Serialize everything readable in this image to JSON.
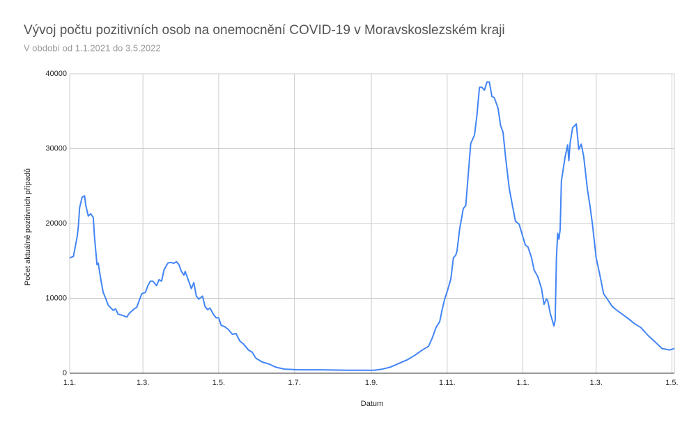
{
  "chart_data": {
    "type": "line",
    "title": "Vývoj počtu pozitivních osob na onemocnění COVID-19 v Moravskoslezském kraji",
    "subtitle": "V období od 1.1.2021 do 3.5.2022",
    "x_label": "Datum",
    "y_label": "Počet aktuálně pozitivních případů",
    "color": "#4285f4",
    "grid": true,
    "x": [
      0,
      3,
      6,
      7,
      8,
      10,
      12,
      13,
      15,
      17,
      19,
      20,
      22,
      23,
      25,
      27,
      29,
      31,
      35,
      37,
      39,
      43,
      46,
      48,
      52,
      54,
      56,
      58,
      61,
      63,
      65,
      67,
      70,
      72,
      74,
      76,
      79,
      81,
      84,
      86,
      88,
      90,
      92,
      93,
      95,
      98,
      100,
      102,
      104,
      107,
      109,
      111,
      113,
      116,
      118,
      120,
      122,
      125,
      128,
      131,
      134,
      137,
      140,
      144,
      147,
      150,
      155,
      161,
      166,
      173,
      185,
      202,
      225,
      245,
      252,
      258,
      265,
      272,
      278,
      284,
      289,
      292,
      295,
      298,
      300,
      302,
      304,
      307,
      309,
      311,
      312,
      314,
      317,
      319,
      321,
      323,
      326,
      328,
      330,
      332,
      334,
      336,
      338,
      340,
      342,
      345,
      347,
      349,
      351,
      354,
      356,
      359,
      362,
      365,
      367,
      369,
      372,
      374,
      377,
      380,
      382,
      384,
      385,
      387,
      390,
      391,
      392,
      393,
      394,
      395,
      396,
      399,
      401,
      402,
      403,
      405,
      408,
      410,
      412,
      414,
      417,
      419,
      421,
      424,
      427,
      430,
      433,
      437,
      440,
      444,
      449,
      455,
      460,
      466,
      472,
      477,
      483,
      487
    ],
    "values": [
      15400,
      15600,
      18200,
      19600,
      22100,
      23500,
      23700,
      22400,
      21000,
      21300,
      20800,
      18200,
      14500,
      14700,
      12600,
      10800,
      10000,
      9100,
      8400,
      8600,
      7900,
      7700,
      7500,
      8000,
      8600,
      8800,
      9700,
      10600,
      10800,
      11700,
      12300,
      12300,
      11700,
      12500,
      12300,
      13800,
      14700,
      14800,
      14700,
      14900,
      14500,
      13600,
      13100,
      13600,
      12700,
      11300,
      12100,
      10300,
      9900,
      10300,
      8900,
      8500,
      8700,
      7800,
      7400,
      7400,
      6400,
      6200,
      5800,
      5200,
      5300,
      4300,
      3900,
      3100,
      2800,
      2000,
      1500,
      1200,
      800,
      550,
      450,
      450,
      400,
      400,
      550,
      800,
      1300,
      1800,
      2400,
      3100,
      3600,
      4700,
      6100,
      6900,
      8500,
      9900,
      10900,
      12600,
      15400,
      15800,
      16400,
      19200,
      22000,
      22400,
      26600,
      30700,
      31800,
      34500,
      38200,
      38200,
      37800,
      38900,
      38900,
      37000,
      36800,
      35400,
      33100,
      32200,
      28900,
      24700,
      22900,
      20300,
      19900,
      18200,
      17100,
      16900,
      15400,
      13800,
      12900,
      11300,
      9200,
      9900,
      9700,
      8000,
      6300,
      7100,
      15400,
      18700,
      17900,
      19200,
      25700,
      28900,
      30500,
      28400,
      30700,
      32800,
      33300,
      29900,
      30600,
      28900,
      24500,
      22400,
      19900,
      15400,
      13100,
      10600,
      9900,
      8900,
      8500,
      8000,
      7400,
      6600,
      6100,
      5000,
      4100,
      3300,
      3100,
      3300
    ],
    "xlim": [
      0,
      487
    ],
    "xticks": [
      {
        "value": 0,
        "label": "1.1."
      },
      {
        "value": 59,
        "label": "1.3."
      },
      {
        "value": 120,
        "label": "1.5."
      },
      {
        "value": 181,
        "label": "1.7."
      },
      {
        "value": 243,
        "label": "1.9."
      },
      {
        "value": 304,
        "label": "1.11."
      },
      {
        "value": 365,
        "label": "1.1."
      },
      {
        "value": 424,
        "label": "1.3."
      },
      {
        "value": 485,
        "label": "1.5."
      }
    ],
    "ylim": [
      0,
      40000
    ],
    "yticks": [
      0,
      10000,
      20000,
      30000,
      40000
    ]
  }
}
